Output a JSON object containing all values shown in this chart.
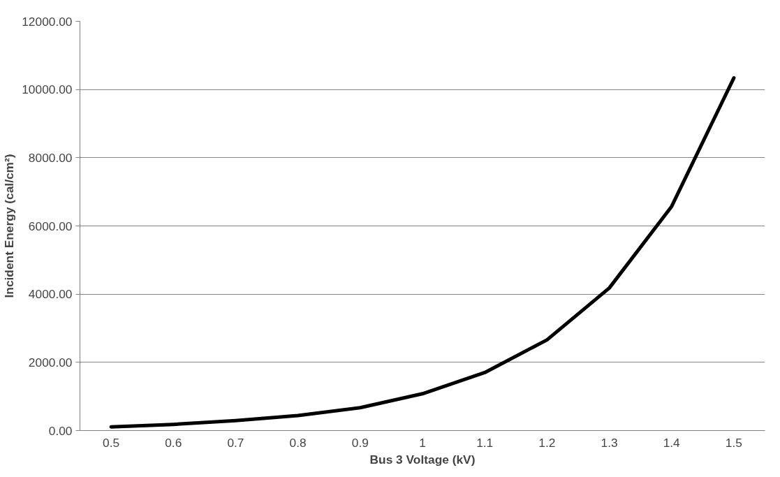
{
  "chart_data": {
    "type": "line",
    "xlabel": "Bus 3 Voltage (kV)",
    "ylabel": "Incident Energy (cal/cm²)",
    "categories": [
      "0.5",
      "0.6",
      "0.7",
      "0.8",
      "0.9",
      "1",
      "1.1",
      "1.2",
      "1.3",
      "1.4",
      "1.5"
    ],
    "series": [
      {
        "color": "#000000",
        "values": [
          110,
          180,
          290,
          440,
          670,
          1080,
          1700,
          2660,
          4180,
          6570,
          10340
        ]
      }
    ],
    "ylim": [
      0,
      12000
    ],
    "yticks": [
      {
        "value": 0,
        "label": "0.00"
      },
      {
        "value": 2000,
        "label": "2000.00"
      },
      {
        "value": 4000,
        "label": "4000.00"
      },
      {
        "value": 6000,
        "label": "6000.00"
      },
      {
        "value": 8000,
        "label": "8000.00"
      },
      {
        "value": 10000,
        "label": "10000.00"
      },
      {
        "value": 12000,
        "label": "12000.00"
      }
    ],
    "grid": "y",
    "marker": "none",
    "line_style": "solid"
  }
}
